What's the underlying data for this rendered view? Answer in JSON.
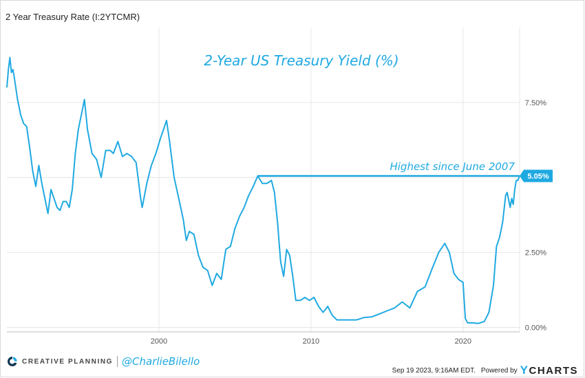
{
  "header": {
    "title": "2 Year Treasury Rate (I:2YTCMR)"
  },
  "chart_data": {
    "type": "line",
    "title": "2-Year US Treasury Yield (%)",
    "annotation": "Highest since June 2007",
    "last_value_label": "5.05%",
    "x_ticks": [
      2000,
      2010,
      2020
    ],
    "x_tick_labels": [
      "2000",
      "2010",
      "2020"
    ],
    "y_ticks": [
      0,
      2.5,
      5,
      7.5
    ],
    "y_tick_labels": [
      "0.00%",
      "2.50%",
      "",
      "7.50%"
    ],
    "xlim": [
      1990.0,
      2023.72
    ],
    "ylim": [
      -0.15,
      10.0
    ],
    "reference_line": {
      "from_x": 2006.5,
      "to_x": 2023.72,
      "y": 5.05
    },
    "series": [
      {
        "name": "2 Year Treasury Rate",
        "color": "#1fa9e1",
        "x": [
          1990.0,
          1990.1,
          1990.2,
          1990.3,
          1990.4,
          1990.5,
          1990.7,
          1990.9,
          1991.1,
          1991.3,
          1991.5,
          1991.7,
          1991.9,
          1992.1,
          1992.3,
          1992.5,
          1992.7,
          1992.9,
          1993.1,
          1993.3,
          1993.5,
          1993.7,
          1993.9,
          1994.1,
          1994.3,
          1994.5,
          1994.7,
          1994.9,
          1995.1,
          1995.3,
          1995.6,
          1995.9,
          1996.2,
          1996.5,
          1996.8,
          1997.0,
          1997.3,
          1997.6,
          1997.9,
          1998.2,
          1998.5,
          1998.8,
          1998.9,
          1999.2,
          1999.5,
          1999.8,
          2000.1,
          2000.3,
          2000.5,
          2000.7,
          2001.0,
          2001.3,
          2001.6,
          2001.8,
          2002.0,
          2002.3,
          2002.6,
          2002.9,
          2003.2,
          2003.5,
          2003.8,
          2004.1,
          2004.4,
          2004.7,
          2005.0,
          2005.3,
          2005.6,
          2005.9,
          2006.2,
          2006.5,
          2006.8,
          2007.1,
          2007.4,
          2007.6,
          2007.8,
          2008.0,
          2008.2,
          2008.4,
          2008.6,
          2008.8,
          2009.0,
          2009.3,
          2009.6,
          2009.9,
          2010.2,
          2010.5,
          2010.8,
          2011.1,
          2011.4,
          2011.7,
          2012.0,
          2012.5,
          2013.0,
          2013.5,
          2014.0,
          2014.5,
          2015.0,
          2015.5,
          2016.0,
          2016.5,
          2017.0,
          2017.5,
          2018.0,
          2018.4,
          2018.8,
          2019.1,
          2019.4,
          2019.7,
          2020.0,
          2020.15,
          2020.3,
          2020.6,
          2021.0,
          2021.4,
          2021.7,
          2022.0,
          2022.2,
          2022.4,
          2022.6,
          2022.8,
          2022.9,
          2023.1,
          2023.2,
          2023.3,
          2023.4,
          2023.5,
          2023.6,
          2023.72
        ],
        "y": [
          8.0,
          8.6,
          9.0,
          8.5,
          8.6,
          8.3,
          7.6,
          7.1,
          6.8,
          6.7,
          6.0,
          5.2,
          4.7,
          5.4,
          4.8,
          4.3,
          3.8,
          4.6,
          4.3,
          4.0,
          3.9,
          4.2,
          4.2,
          4.0,
          4.6,
          5.8,
          6.6,
          7.1,
          7.6,
          6.6,
          5.8,
          5.6,
          5.0,
          5.9,
          5.9,
          5.8,
          6.2,
          5.7,
          5.8,
          5.7,
          5.5,
          4.3,
          4.0,
          4.8,
          5.4,
          5.8,
          6.3,
          6.6,
          6.9,
          6.2,
          5.0,
          4.3,
          3.6,
          2.9,
          3.2,
          3.1,
          2.4,
          2.0,
          1.9,
          1.4,
          1.8,
          1.6,
          2.6,
          2.7,
          3.3,
          3.7,
          4.0,
          4.4,
          4.7,
          5.05,
          4.8,
          4.8,
          4.9,
          4.5,
          3.5,
          2.2,
          1.7,
          2.6,
          2.4,
          1.7,
          0.9,
          0.9,
          1.0,
          0.9,
          1.0,
          0.7,
          0.5,
          0.7,
          0.4,
          0.25,
          0.25,
          0.25,
          0.25,
          0.33,
          0.35,
          0.45,
          0.55,
          0.65,
          0.85,
          0.65,
          1.2,
          1.35,
          2.0,
          2.5,
          2.8,
          2.5,
          1.8,
          1.6,
          1.5,
          0.3,
          0.15,
          0.15,
          0.13,
          0.2,
          0.5,
          1.4,
          2.7,
          3.0,
          3.5,
          4.4,
          4.5,
          4.0,
          4.3,
          4.1,
          4.6,
          4.9,
          4.9,
          5.05
        ]
      }
    ]
  },
  "footer": {
    "brand": "CREATIVE PLANNING",
    "handle": "@CharlieBilello",
    "timestamp": "Sep 19 2023, 9:16AM EDT.",
    "powered_by": "Powered by",
    "provider": "CHARTS",
    "provider_initial": "Y"
  },
  "colors": {
    "line": "#1fa9e1",
    "grid": "#e6e6e6",
    "axis": "#bdbdbd",
    "text": "#555555"
  }
}
